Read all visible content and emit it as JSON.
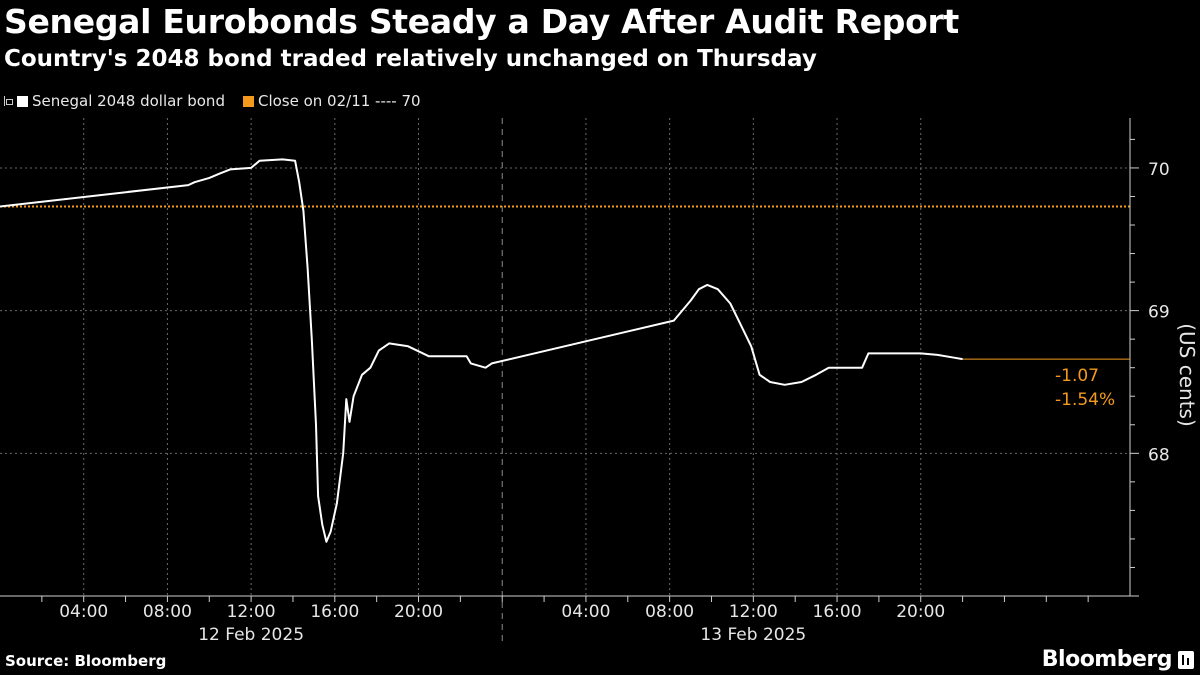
{
  "header": {
    "title": "Senegal Eurobonds Steady a Day After Audit Report",
    "subtitle": "Country's 2048 bond traded relatively unchanged on Thursday"
  },
  "legend": {
    "series_label": "Senegal 2048 dollar bond",
    "close_label": "Close on 02/11 ---- 70"
  },
  "footer": {
    "source": "Source: Bloomberg",
    "brand": "Bloomberg"
  },
  "colors": {
    "background": "#000000",
    "series": "#ffffff",
    "close_line": "#f39a1e",
    "grid": "#6a6a6a",
    "axis_text": "#e6e6e6"
  },
  "chart_data": {
    "type": "line",
    "title": "Senegal Eurobonds Steady a Day After Audit Report",
    "subtitle": "Country's 2048 bond traded relatively unchanged on Thursday",
    "ylabel": "(US cents)",
    "ylim": [
      67.0,
      70.35
    ],
    "yticks": [
      68,
      69,
      70
    ],
    "xlim_hours": [
      0,
      54
    ],
    "x_unit": "hours since 00:00 12 Feb 2025",
    "xtick_labels": [
      {
        "hour": 4,
        "label": "04:00"
      },
      {
        "hour": 8,
        "label": "08:00"
      },
      {
        "hour": 12,
        "label": "12:00"
      },
      {
        "hour": 16,
        "label": "16:00"
      },
      {
        "hour": 20,
        "label": "20:00"
      },
      {
        "hour": 28,
        "label": "04:00"
      },
      {
        "hour": 32,
        "label": "08:00"
      },
      {
        "hour": 36,
        "label": "12:00"
      },
      {
        "hour": 40,
        "label": "16:00"
      },
      {
        "hour": 44,
        "label": "20:00"
      }
    ],
    "date_labels": [
      {
        "hour": 12,
        "label": "12 Feb 2025"
      },
      {
        "hour": 36,
        "label": "13 Feb 2025"
      }
    ],
    "day_boundary_hour": 24,
    "grid": true,
    "legend_position": "top-left",
    "reference_line": {
      "name": "Close on 02/11",
      "value": 69.73
    },
    "change_annotation": {
      "absolute": "-1.07",
      "percent": "-1.54%"
    },
    "series": [
      {
        "name": "Senegal 2048 dollar bond",
        "points": [
          [
            0.0,
            69.73
          ],
          [
            9.0,
            69.88
          ],
          [
            9.3,
            69.9
          ],
          [
            10.0,
            69.93
          ],
          [
            10.5,
            69.96
          ],
          [
            11.0,
            69.99
          ],
          [
            12.0,
            70.0
          ],
          [
            12.4,
            70.05
          ],
          [
            13.5,
            70.06
          ],
          [
            14.1,
            70.05
          ],
          [
            14.3,
            69.9
          ],
          [
            14.5,
            69.7
          ],
          [
            14.7,
            69.3
          ],
          [
            14.9,
            68.8
          ],
          [
            15.1,
            68.2
          ],
          [
            15.2,
            67.7
          ],
          [
            15.4,
            67.5
          ],
          [
            15.6,
            67.38
          ],
          [
            15.8,
            67.45
          ],
          [
            16.1,
            67.65
          ],
          [
            16.4,
            68.0
          ],
          [
            16.55,
            68.38
          ],
          [
            16.7,
            68.22
          ],
          [
            16.9,
            68.4
          ],
          [
            17.3,
            68.55
          ],
          [
            17.7,
            68.6
          ],
          [
            18.1,
            68.72
          ],
          [
            18.6,
            68.77
          ],
          [
            19.5,
            68.75
          ],
          [
            20.5,
            68.68
          ],
          [
            22.3,
            68.68
          ],
          [
            22.5,
            68.63
          ],
          [
            23.2,
            68.6
          ],
          [
            23.5,
            68.63
          ],
          [
            32.2,
            68.93
          ],
          [
            32.6,
            69.0
          ],
          [
            33.0,
            69.07
          ],
          [
            33.4,
            69.15
          ],
          [
            33.8,
            69.18
          ],
          [
            34.3,
            69.15
          ],
          [
            34.9,
            69.05
          ],
          [
            35.4,
            68.9
          ],
          [
            35.9,
            68.75
          ],
          [
            36.3,
            68.55
          ],
          [
            36.8,
            68.5
          ],
          [
            37.5,
            68.48
          ],
          [
            38.3,
            68.5
          ],
          [
            39.0,
            68.55
          ],
          [
            39.6,
            68.6
          ],
          [
            41.2,
            68.6
          ],
          [
            41.5,
            68.7
          ],
          [
            44.0,
            68.7
          ],
          [
            44.8,
            68.69
          ],
          [
            45.6,
            68.67
          ],
          [
            46.0,
            68.66
          ]
        ]
      }
    ]
  }
}
